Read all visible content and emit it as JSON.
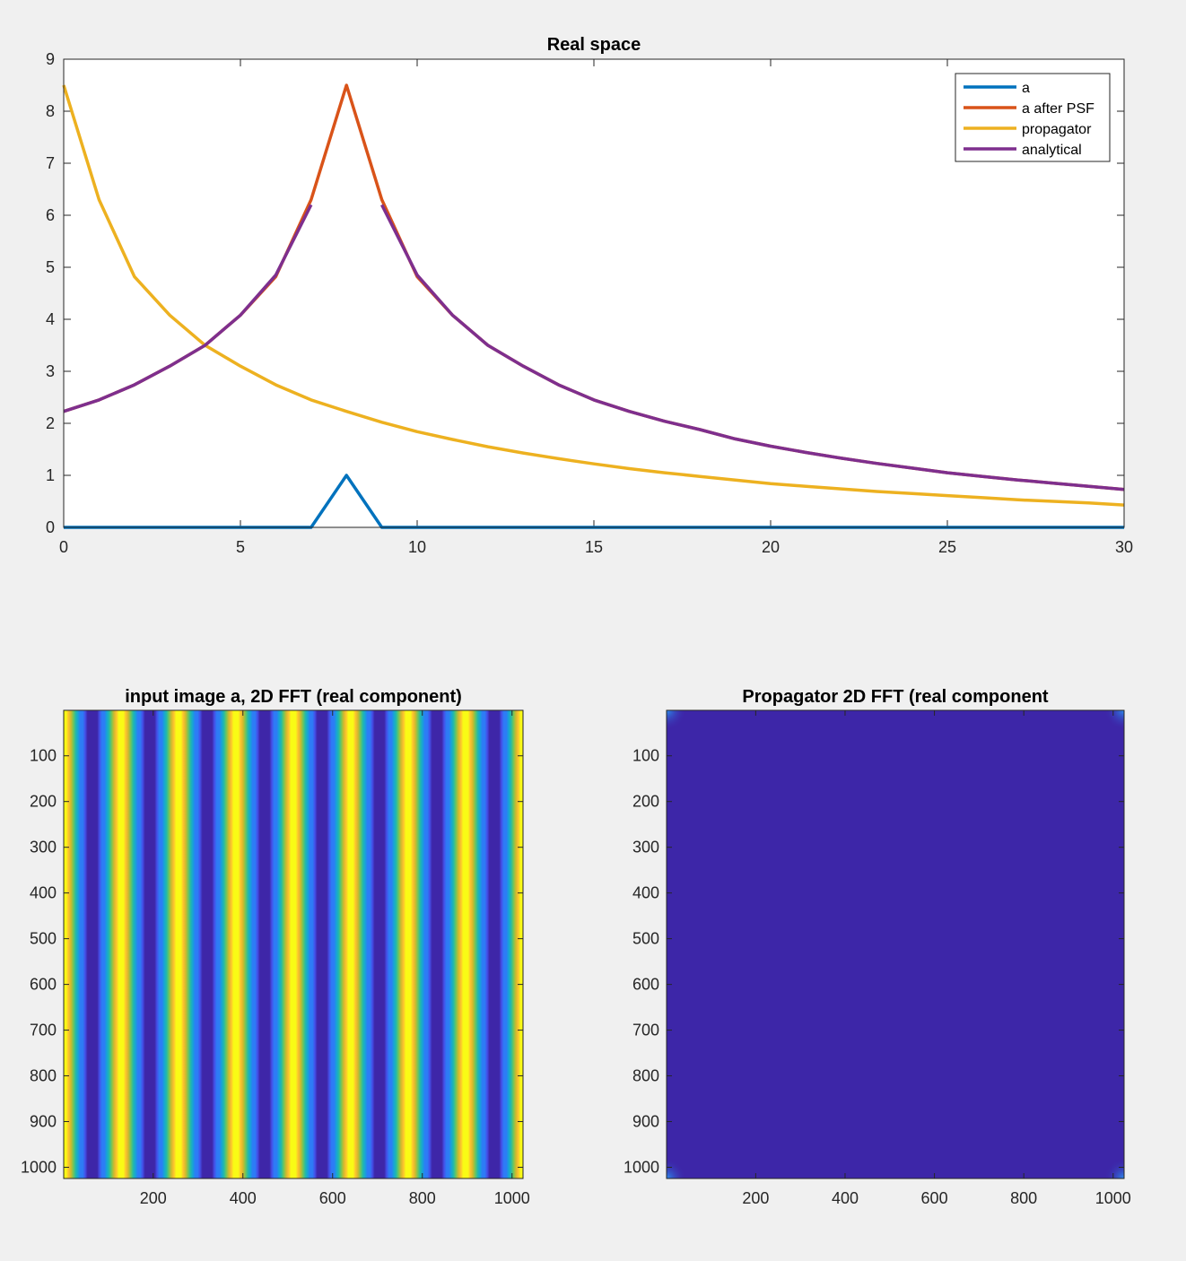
{
  "chart_data": [
    {
      "type": "line",
      "title": "Real space",
      "xlabel": "",
      "ylabel": "",
      "xlim": [
        0,
        30
      ],
      "ylim": [
        0,
        9
      ],
      "xticks": [
        0,
        5,
        10,
        15,
        20,
        25,
        30
      ],
      "yticks": [
        0,
        1,
        2,
        3,
        4,
        5,
        6,
        7,
        8,
        9
      ],
      "grid": false,
      "legend_position": "top-right",
      "x": [
        0,
        1,
        2,
        3,
        4,
        5,
        6,
        7,
        8,
        9,
        10,
        11,
        12,
        13,
        14,
        15,
        16,
        17,
        18,
        19,
        20,
        21,
        22,
        23,
        24,
        25,
        26,
        27,
        28,
        29,
        30
      ],
      "series": [
        {
          "name": "a",
          "color": "#0072BD",
          "values": [
            0,
            0,
            0,
            0,
            0,
            0,
            0,
            0,
            1,
            0,
            0,
            0,
            0,
            0,
            0,
            0,
            0,
            0,
            0,
            0,
            0,
            0,
            0,
            0,
            0,
            0,
            0,
            0,
            0,
            0,
            0
          ]
        },
        {
          "name": "a after PSF",
          "color": "#D95319",
          "values": [
            2.23,
            2.45,
            2.74,
            3.1,
            3.5,
            4.08,
            4.82,
            6.3,
            8.5,
            6.3,
            4.82,
            4.08,
            3.5,
            3.1,
            2.74,
            2.45,
            2.23,
            2.04,
            1.88,
            1.7,
            1.56,
            1.44,
            1.33,
            1.23,
            1.14,
            1.05,
            0.98,
            0.91,
            0.85,
            0.79,
            0.73
          ]
        },
        {
          "name": "propagator",
          "color": "#EDB120",
          "values": [
            8.5,
            6.3,
            4.82,
            4.08,
            3.5,
            3.1,
            2.74,
            2.45,
            2.23,
            2.02,
            1.84,
            1.69,
            1.55,
            1.43,
            1.32,
            1.22,
            1.13,
            1.05,
            0.98,
            0.91,
            0.84,
            0.79,
            0.74,
            0.69,
            0.65,
            0.61,
            0.57,
            0.53,
            0.5,
            0.47,
            0.43
          ]
        },
        {
          "name": "analytical",
          "color": "#7E2F8E",
          "values": [
            2.23,
            2.45,
            2.74,
            3.1,
            3.5,
            4.08,
            4.85,
            6.2,
            null,
            6.2,
            4.85,
            4.08,
            3.5,
            3.1,
            2.74,
            2.45,
            2.23,
            2.04,
            1.88,
            1.7,
            1.56,
            1.44,
            1.33,
            1.23,
            1.14,
            1.05,
            0.98,
            0.91,
            0.85,
            0.79,
            0.73
          ]
        }
      ]
    },
    {
      "type": "heatmap",
      "title": "input image a, 2D FFT (real component)",
      "xlim": [
        1,
        1024
      ],
      "ylim": [
        1,
        1024
      ],
      "xticks": [
        200,
        400,
        600,
        800,
        1000
      ],
      "yticks": [
        100,
        200,
        300,
        400,
        500,
        600,
        700,
        800,
        900,
        1000
      ],
      "pattern": "vertical cosine stripes",
      "cycles": 8,
      "colormap": "parula",
      "y_direction": "reverse"
    },
    {
      "type": "heatmap",
      "title": "Propagator 2D FFT (real component",
      "xlim": [
        1,
        1024
      ],
      "ylim": [
        1,
        1024
      ],
      "xticks": [
        200,
        400,
        600,
        800,
        1000
      ],
      "yticks": [
        100,
        200,
        300,
        400,
        500,
        600,
        700,
        800,
        900,
        1000
      ],
      "pattern": "near-uniform with brighter corners",
      "base_color": "#3D26A8",
      "corner_color": "#2C8FF0",
      "colormap": "parula",
      "y_direction": "reverse"
    }
  ]
}
